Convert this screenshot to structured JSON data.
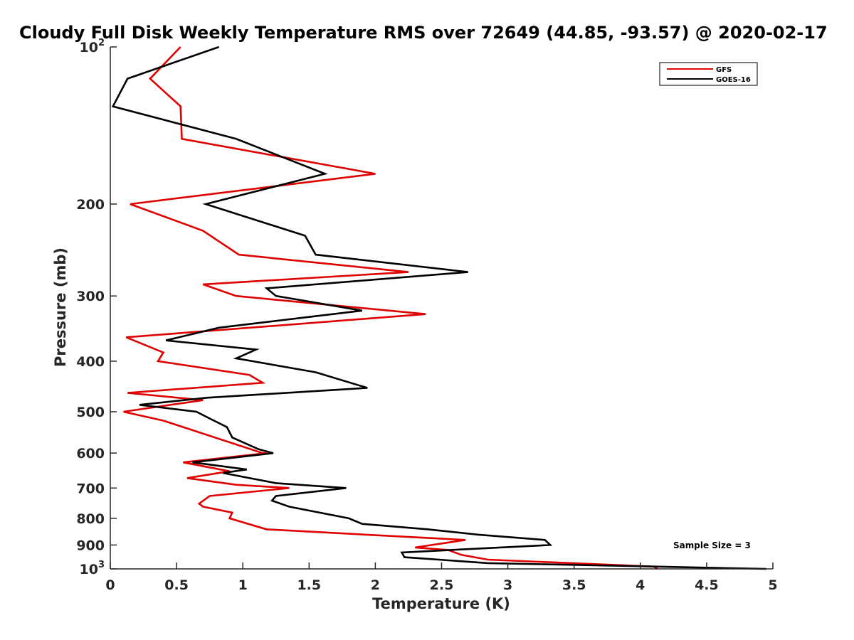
{
  "chart_data": {
    "type": "line",
    "title": "Cloudy Full Disk Weekly Temperature RMS over 72649 (44.85, -93.57) @ 2020-02-17",
    "xlabel": "Temperature (K)",
    "ylabel": "Pressure (mb)",
    "xlim": [
      0,
      5
    ],
    "ylim": [
      100,
      1000
    ],
    "yscale": "log",
    "y_reversed": true,
    "xticks": [
      "0",
      "0.5",
      "1",
      "1.5",
      "2",
      "2.5",
      "3",
      "3.5",
      "4",
      "4.5",
      "5"
    ],
    "yticks": [
      {
        "value": 100,
        "base": "10",
        "exp": "2"
      },
      {
        "value": 200,
        "label": "200"
      },
      {
        "value": 300,
        "label": "300"
      },
      {
        "value": 400,
        "label": "400"
      },
      {
        "value": 500,
        "label": "500"
      },
      {
        "value": 600,
        "label": "600"
      },
      {
        "value": 700,
        "label": "700"
      },
      {
        "value": 800,
        "label": "800"
      },
      {
        "value": 900,
        "label": "900"
      },
      {
        "value": 1000,
        "base": "10",
        "exp": "3"
      }
    ],
    "grid": false,
    "legend_position": "top-right",
    "annotation": "Sample Size = 3",
    "series": [
      {
        "name": "GFS",
        "color": "#e00000",
        "points": [
          [
            0.53,
            100
          ],
          [
            0.3,
            115
          ],
          [
            0.53,
            130
          ],
          [
            0.54,
            150
          ],
          [
            2.0,
            175
          ],
          [
            0.15,
            200
          ],
          [
            0.7,
            225
          ],
          [
            0.97,
            250
          ],
          [
            2.25,
            270
          ],
          [
            0.7,
            285
          ],
          [
            0.95,
            300
          ],
          [
            2.38,
            325
          ],
          [
            0.12,
            360
          ],
          [
            0.4,
            385
          ],
          [
            0.36,
            400
          ],
          [
            1.05,
            425
          ],
          [
            1.15,
            440
          ],
          [
            0.13,
            460
          ],
          [
            0.7,
            475
          ],
          [
            0.1,
            500
          ],
          [
            0.4,
            520
          ],
          [
            1.15,
            600
          ],
          [
            1.18,
            600
          ],
          [
            0.55,
            625
          ],
          [
            0.9,
            650
          ],
          [
            0.58,
            670
          ],
          [
            0.95,
            690
          ],
          [
            1.35,
            700
          ],
          [
            0.75,
            725
          ],
          [
            0.67,
            750
          ],
          [
            0.7,
            760
          ],
          [
            0.92,
            780
          ],
          [
            0.9,
            800
          ],
          [
            1.18,
            840
          ],
          [
            2.68,
            880
          ],
          [
            2.3,
            910
          ],
          [
            2.55,
            920
          ],
          [
            2.65,
            940
          ],
          [
            2.85,
            960
          ],
          [
            4.1,
            990
          ],
          [
            4.13,
            1000
          ]
        ]
      },
      {
        "name": "GOES-16",
        "color": "#000000",
        "points": [
          [
            0.82,
            100
          ],
          [
            0.13,
            115
          ],
          [
            0.02,
            130
          ],
          [
            0.95,
            150
          ],
          [
            1.62,
            175
          ],
          [
            0.72,
            200
          ],
          [
            1.47,
            230
          ],
          [
            1.55,
            250
          ],
          [
            2.7,
            270
          ],
          [
            1.18,
            290
          ],
          [
            1.25,
            300
          ],
          [
            1.9,
            320
          ],
          [
            0.82,
            345
          ],
          [
            0.42,
            365
          ],
          [
            1.1,
            380
          ],
          [
            0.95,
            395
          ],
          [
            1.55,
            420
          ],
          [
            1.94,
            450
          ],
          [
            0.73,
            470
          ],
          [
            0.22,
            485
          ],
          [
            0.65,
            500
          ],
          [
            0.75,
            515
          ],
          [
            0.88,
            535
          ],
          [
            0.92,
            560
          ],
          [
            1.12,
            590
          ],
          [
            1.23,
            600
          ],
          [
            0.62,
            625
          ],
          [
            1.03,
            645
          ],
          [
            0.85,
            655
          ],
          [
            1.25,
            685
          ],
          [
            1.78,
            700
          ],
          [
            1.25,
            725
          ],
          [
            1.22,
            740
          ],
          [
            1.35,
            760
          ],
          [
            1.8,
            800
          ],
          [
            1.9,
            820
          ],
          [
            2.4,
            840
          ],
          [
            2.78,
            860
          ],
          [
            3.28,
            880
          ],
          [
            3.32,
            900
          ],
          [
            2.2,
            930
          ],
          [
            2.22,
            950
          ],
          [
            2.85,
            975
          ],
          [
            4.95,
            1000
          ]
        ]
      }
    ]
  }
}
